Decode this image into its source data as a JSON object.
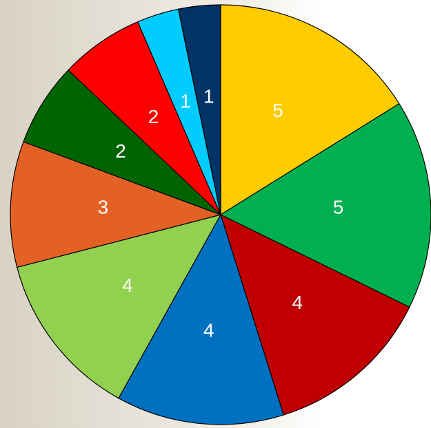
{
  "chart_data": {
    "type": "pie",
    "categories": [
      null,
      null,
      null,
      null,
      null,
      null,
      null,
      null,
      null,
      null
    ],
    "values": [
      5,
      5,
      4,
      4,
      4,
      3,
      2,
      2,
      1,
      1
    ],
    "colors": [
      "#ffcc00",
      "#00b050",
      "#c00000",
      "#0070c0",
      "#92d050",
      "#e46125",
      "#006400",
      "#ff0000",
      "#00ccff",
      "#003366"
    ]
  }
}
